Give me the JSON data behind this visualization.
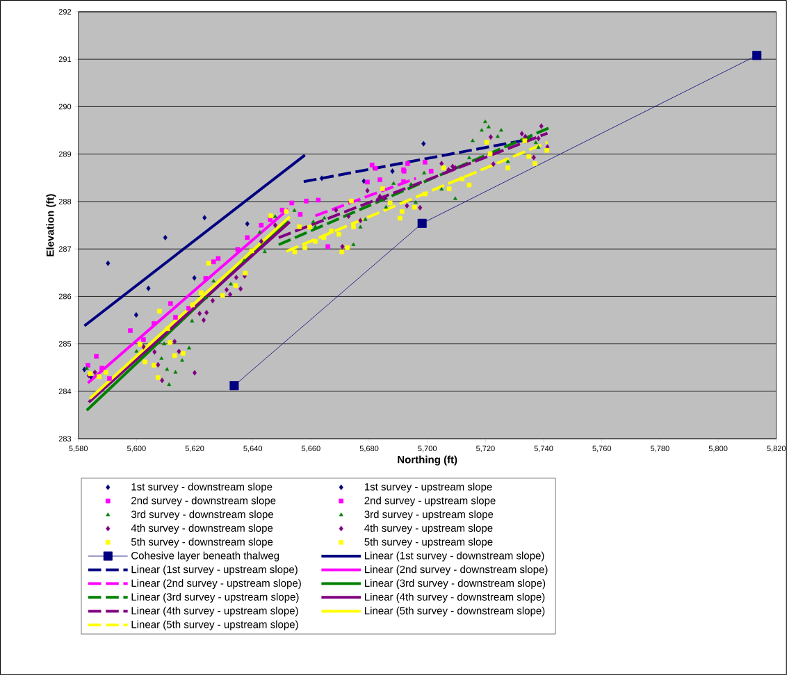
{
  "chart_data": {
    "type": "scatter",
    "xlabel": "Northing (ft)",
    "ylabel": "Elevation (ft)",
    "xlim": [
      5580,
      5820
    ],
    "ylim": [
      283,
      292
    ],
    "xticks": [
      {
        "value": 5580,
        "label": "5,580"
      },
      {
        "value": 5600,
        "label": "5,600"
      },
      {
        "value": 5620,
        "label": "5,620"
      },
      {
        "value": 5640,
        "label": "5,640"
      },
      {
        "value": 5660,
        "label": "5,660"
      },
      {
        "value": 5680,
        "label": "5,680"
      },
      {
        "value": 5700,
        "label": "5,700"
      },
      {
        "value": 5720,
        "label": "5,720"
      },
      {
        "value": 5740,
        "label": "5,740"
      },
      {
        "value": 5760,
        "label": "5,760"
      },
      {
        "value": 5780,
        "label": "5,780"
      },
      {
        "value": 5800,
        "label": "5,800"
      },
      {
        "value": 5820,
        "label": "5,820"
      }
    ],
    "yticks": [
      283,
      284,
      285,
      286,
      287,
      288,
      289,
      290,
      291,
      292
    ],
    "grid": "y",
    "legend": "bottom",
    "series": [
      {
        "name": "1st survey - downstream slope",
        "color": "#000080",
        "marker": "diamond",
        "x": [
          5582.1,
          5584.3,
          5590.2,
          5599.9,
          5604.1,
          5609.9,
          5619.9,
          5623.4,
          5638.1
        ],
        "values": [
          284.46,
          284.31,
          286.7,
          285.61,
          286.17,
          287.24,
          286.39,
          287.66,
          287.53
        ]
      },
      {
        "name": "1st survey - upstream slope",
        "color": "#000080",
        "marker": "diamond",
        "x": [
          5663.7,
          5678.2,
          5688.0,
          5698.7
        ],
        "values": [
          288.49,
          288.43,
          288.64,
          289.22
        ]
      },
      {
        "name": "2nd survey - downstream slope",
        "color": "#ff00ff",
        "marker": "square",
        "x": [
          5583.3,
          5586.2,
          5588.1,
          5590.7,
          5597.9,
          5602.4,
          5606.0,
          5611.7,
          5613.4,
          5617.9,
          5623.8,
          5626.5,
          5628.1,
          5634.8,
          5638.1,
          5642.9,
          5646.0,
          5650.1
        ],
        "values": [
          284.55,
          284.74,
          284.49,
          284.27,
          285.28,
          285.09,
          285.43,
          285.85,
          285.56,
          285.75,
          286.38,
          286.73,
          286.8,
          286.99,
          287.24,
          287.5,
          287.62,
          287.82
        ]
      },
      {
        "name": "2nd survey - upstream slope",
        "color": "#ff00ff",
        "marker": "square",
        "x": [
          5653.4,
          5658.4,
          5662.5,
          5656.3,
          5665.8,
          5679.4,
          5681.0,
          5683.7,
          5682.2,
          5691.8,
          5693.2,
          5699.2,
          5692.0,
          5701.3,
          5691.8
        ],
        "values": [
          287.97,
          288.01,
          288.03,
          287.73,
          287.05,
          288.41,
          288.77,
          288.46,
          288.7,
          288.67,
          288.8,
          288.83,
          288.64,
          288.64,
          288.42
        ]
      },
      {
        "name": "3rd survey - downstream slope",
        "color": "#008000",
        "marker": "triangle",
        "x": [
          5582.9,
          5600.0,
          5608.6,
          5610.5,
          5611.2,
          5613.4,
          5615.7,
          5618.1,
          5609.5,
          5619.1,
          5623.8,
          5626.5,
          5632.4,
          5637.0,
          5644.1,
          5642.4,
          5647.7
        ],
        "values": [
          284.48,
          284.84,
          284.69,
          284.46,
          284.14,
          284.4,
          284.65,
          284.91,
          285.0,
          285.48,
          285.97,
          286.32,
          286.26,
          286.75,
          286.94,
          287.35,
          287.68
        ]
      },
      {
        "name": "3rd survey - upstream slope",
        "color": "#008000",
        "marker": "triangle",
        "x": [
          5654.3,
          5660.8,
          5664.6,
          5661.5,
          5674.6,
          5677.0,
          5678.7,
          5685.8,
          5688.4,
          5694.4,
          5696.0,
          5698.9,
          5704.9,
          5709.6,
          5714.4,
          5715.6,
          5719.9,
          5718.7,
          5721.1,
          5725.4,
          5724.2,
          5727.7,
          5734.7,
          5737.3,
          5738.2
        ],
        "values": [
          287.81,
          287.57,
          287.65,
          287.47,
          287.09,
          287.46,
          287.62,
          287.88,
          288.38,
          288.36,
          287.98,
          288.6,
          288.26,
          288.06,
          288.92,
          289.28,
          289.68,
          289.5,
          289.57,
          289.5,
          289.37,
          288.84,
          289.34,
          289.24,
          289.14
        ]
      },
      {
        "name": "4th survey - downstream slope",
        "color": "#800080",
        "marker": "diamond",
        "x": [
          5583.6,
          5585.7,
          5602.4,
          5613.1,
          5614.6,
          5606.2,
          5607.4,
          5608.8,
          5620.0,
          5621.7,
          5624.1,
          5623.1,
          5626.2,
          5631.0,
          5632.2,
          5635.8,
          5634.3,
          5637.2,
          5642.9,
          5647.7
        ],
        "values": [
          284.33,
          284.4,
          284.94,
          285.05,
          284.84,
          284.83,
          284.56,
          284.23,
          284.39,
          285.64,
          285.66,
          285.5,
          285.91,
          286.14,
          286.04,
          286.16,
          286.4,
          286.43,
          287.16,
          287.5
        ]
      },
      {
        "name": "4th survey - upstream slope",
        "color": "#800080",
        "marker": "diamond",
        "x": [
          5668.6,
          5672.9,
          5677.0,
          5679.4,
          5682.9,
          5683.7,
          5685.3,
          5693.0,
          5697.5,
          5704.9,
          5707.3,
          5708.7,
          5709.6,
          5670.8,
          5721.8,
          5722.7,
          5732.5,
          5733.7,
          5739.2,
          5738.2,
          5741.3,
          5736.6
        ],
        "values": [
          287.82,
          287.69,
          287.6,
          288.23,
          288.03,
          288.11,
          288.07,
          287.91,
          287.87,
          288.8,
          288.67,
          288.74,
          288.71,
          287.05,
          289.36,
          288.79,
          289.43,
          289.37,
          289.59,
          289.33,
          289.15,
          288.93
        ]
      },
      {
        "name": "5th survey - downstream slope",
        "color": "#ffff00",
        "marker": "square",
        "x": [
          5584.1,
          5587.1,
          5589.5,
          5601.2,
          5602.9,
          5606.0,
          5607.4,
          5611.5,
          5613.1,
          5616.0,
          5607.9,
          5610.7,
          5619.3,
          5622.2,
          5624.8,
          5629.6,
          5634.1,
          5637.4,
          5639.6,
          5646.2
        ],
        "values": [
          284.37,
          284.31,
          284.4,
          284.99,
          284.62,
          284.55,
          284.29,
          285.03,
          284.75,
          284.8,
          285.69,
          285.32,
          285.82,
          286.08,
          286.7,
          286.02,
          286.23,
          286.49,
          286.96,
          287.7
        ]
      },
      {
        "name": "5th survey - upstream slope",
        "color": "#ffff00",
        "marker": "square",
        "x": [
          5651.5,
          5656.0,
          5654.4,
          5659.6,
          5657.9,
          5661.5,
          5664.4,
          5667.0,
          5669.6,
          5670.6,
          5672.5,
          5673.9,
          5674.6,
          5684.6,
          5687.2,
          5691.3,
          5690.6,
          5695.6,
          5699.2,
          5705.6,
          5707.5,
          5712.0,
          5714.4,
          5720.4,
          5721.6,
          5727.7,
          5733.5,
          5734.9,
          5737.0,
          5741.1
        ],
        "values": [
          287.79,
          287.47,
          286.94,
          287.46,
          287.03,
          287.16,
          287.24,
          287.38,
          287.31,
          286.94,
          287.03,
          288.01,
          287.47,
          288.27,
          287.97,
          287.79,
          287.65,
          287.88,
          288.16,
          288.71,
          288.27,
          288.48,
          288.35,
          289.25,
          289.01,
          288.71,
          289.28,
          288.95,
          288.8,
          289.08
        ]
      },
      {
        "name": "Cohesive layer beneath thalweg",
        "color": "#000080",
        "type": "line",
        "marker": "square",
        "line_style": "solid",
        "x": [
          5633.6,
          5698.2,
          5813.3
        ],
        "values": [
          284.12,
          287.54,
          291.08
        ]
      },
      {
        "name": "Linear (1st survey - downstream slope)",
        "color": "#000080",
        "type": "line",
        "line_style": "solid",
        "x": [
          5582.1,
          5657.9
        ],
        "values": [
          285.38,
          288.98
        ]
      },
      {
        "name": "Linear (1st survey - upstream slope)",
        "color": "#000080",
        "type": "line",
        "line_style": "dashed",
        "x": [
          5657.5,
          5736.6
        ],
        "values": [
          288.42,
          289.33
        ]
      },
      {
        "name": "Linear (2nd survey - downstream slope)",
        "color": "#ff00ff",
        "type": "line",
        "line_style": "solid",
        "x": [
          5583.3,
          5652.2
        ],
        "values": [
          284.18,
          287.84
        ]
      },
      {
        "name": "Linear (2nd survey - upstream slope)",
        "color": "#ff00ff",
        "type": "line",
        "line_style": "dashed",
        "x": [
          5661.5,
          5696.1
        ],
        "values": [
          287.7,
          288.49
        ]
      },
      {
        "name": "Linear (3rd survey - downstream slope)",
        "color": "#008000",
        "type": "line",
        "line_style": "solid",
        "x": [
          5582.9,
          5652.0
        ],
        "values": [
          283.6,
          287.6
        ]
      },
      {
        "name": "Linear (3rd survey - upstream slope)",
        "color": "#008000",
        "type": "line",
        "line_style": "dashed",
        "x": [
          5648.9,
          5742.5
        ],
        "values": [
          287.09,
          289.57
        ]
      },
      {
        "name": "Linear (4th survey - downstream slope)",
        "color": "#800080",
        "type": "line",
        "line_style": "solid",
        "x": [
          5583.6,
          5652.7
        ],
        "values": [
          283.77,
          287.57
        ]
      },
      {
        "name": "Linear (4th survey - upstream slope)",
        "color": "#800080",
        "type": "line",
        "line_style": "dashed",
        "x": [
          5648.9,
          5741.3
        ],
        "values": [
          287.24,
          289.44
        ]
      },
      {
        "name": "Linear (5th survey - downstream slope)",
        "color": "#ffff00",
        "type": "line",
        "line_style": "solid",
        "x": [
          5584.0,
          5652.7
        ],
        "values": [
          283.85,
          287.68
        ]
      },
      {
        "name": "Linear (5th survey - upstream slope)",
        "color": "#ffff00",
        "type": "line",
        "line_style": "dashed",
        "x": [
          5651.5,
          5741.3
        ],
        "values": [
          286.95,
          289.25
        ]
      }
    ]
  }
}
